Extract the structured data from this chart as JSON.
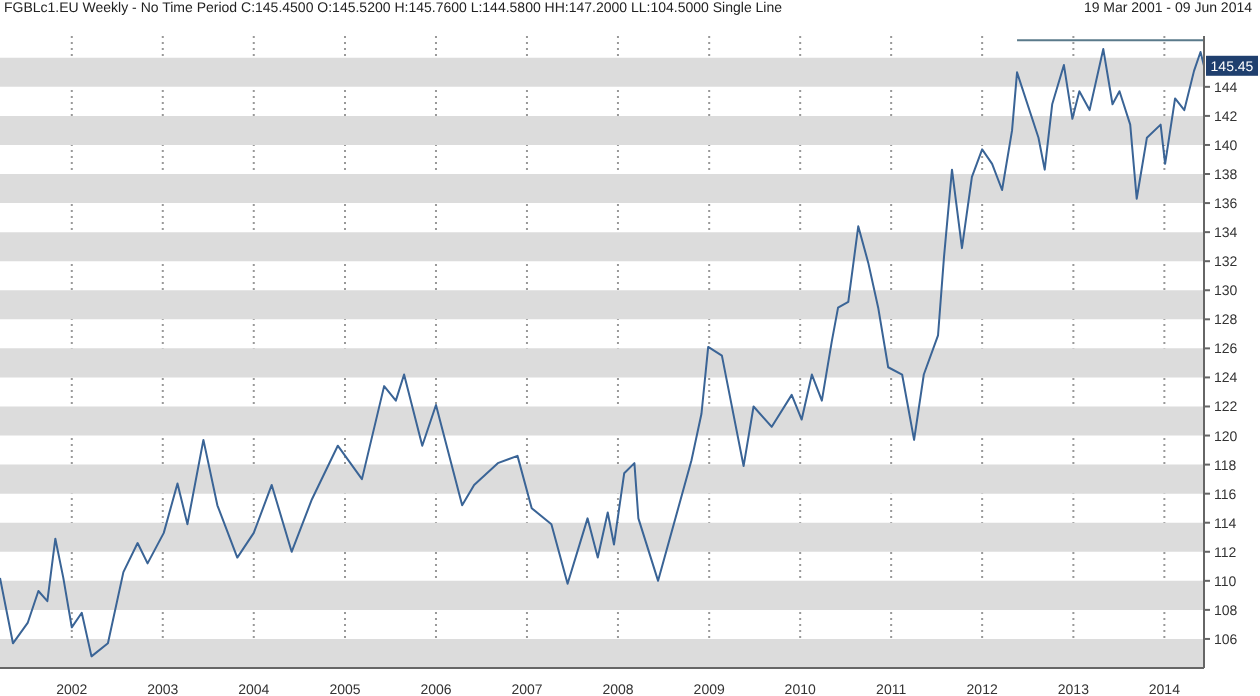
{
  "chart_data": {
    "type": "line",
    "title": "FGBLc1.EU Weekly - No Time Period C:145.4500 O:145.5200 H:145.7600 L:144.5800 HH:147.2000 LL:104.5000 Single Line",
    "subtitle": "19 Mar 2001 - 09 Jun 2014",
    "x": [
      "2001-03-19",
      "2001-05-10",
      "2001-07-08",
      "2001-08-20",
      "2001-09-25",
      "2001-10-27",
      "2001-11-28",
      "2002-01-01",
      "2002-02-10",
      "2002-03-21",
      "2002-05-26",
      "2002-07-27",
      "2002-09-22",
      "2002-11-01",
      "2003-01-05",
      "2003-03-01",
      "2003-04-10",
      "2003-06-13",
      "2003-08-08",
      "2003-10-27",
      "2004-01-01",
      "2004-03-13",
      "2004-06-01",
      "2004-08-21",
      "2004-12-03",
      "2005-03-10",
      "2005-06-07",
      "2005-07-24",
      "2005-08-26",
      "2005-11-07",
      "2006-01-01",
      "2006-04-16",
      "2006-06-03",
      "2006-09-06",
      "2006-11-24",
      "2007-01-20",
      "2007-04-09",
      "2007-06-13",
      "2007-09-01",
      "2007-10-12",
      "2007-11-21",
      "2007-12-16",
      "2008-01-26",
      "2008-03-07",
      "2008-03-23",
      "2008-06-10",
      "2008-10-22",
      "2008-12-01",
      "2008-12-28",
      "2009-02-21",
      "2009-05-19",
      "2009-06-28",
      "2009-09-09",
      "2009-11-28",
      "2010-01-07",
      "2010-02-17",
      "2010-03-29",
      "2010-05-08",
      "2010-06-02",
      "2010-07-13",
      "2010-08-22",
      "2010-10-01",
      "2010-11-10",
      "2010-12-20",
      "2011-02-14",
      "2011-04-03",
      "2011-05-12",
      "2011-07-08",
      "2011-08-01",
      "2011-09-02",
      "2011-10-12",
      "2011-11-21",
      "2012-01-01",
      "2012-02-10",
      "2012-03-21",
      "2012-04-30",
      "2012-05-20",
      "2012-08-14",
      "2012-09-08",
      "2012-10-08",
      "2012-11-24",
      "2012-12-28",
      "2013-01-25",
      "2013-03-07",
      "2013-05-01",
      "2013-06-07",
      "2013-07-05",
      "2013-08-17",
      "2013-09-12",
      "2013-10-23",
      "2013-12-17",
      "2014-01-04",
      "2014-02-13",
      "2014-03-22",
      "2014-04-30",
      "2014-05-26",
      "2014-06-09"
    ],
    "series": [
      {
        "color": "#3a6496",
        "values": [
          110.2,
          105.7,
          107.1,
          109.3,
          108.6,
          112.9,
          110.2,
          106.8,
          107.8,
          104.8,
          105.7,
          110.6,
          112.6,
          111.2,
          113.3,
          116.7,
          113.9,
          119.7,
          115.2,
          111.6,
          113.3,
          116.6,
          112.0,
          115.6,
          119.3,
          117.0,
          123.4,
          122.4,
          124.2,
          119.3,
          122.1,
          115.2,
          116.6,
          118.1,
          118.6,
          115.0,
          113.9,
          109.8,
          114.3,
          111.6,
          114.7,
          112.5,
          117.4,
          118.1,
          114.3,
          110.0,
          118.3,
          121.5,
          126.1,
          125.5,
          117.9,
          122.0,
          120.6,
          122.8,
          121.1,
          124.2,
          122.4,
          126.5,
          128.8,
          129.2,
          134.4,
          131.9,
          128.8,
          124.7,
          124.2,
          119.7,
          124.2,
          126.9,
          132.3,
          138.3,
          132.9,
          137.8,
          139.7,
          138.7,
          136.9,
          141.0,
          145.0,
          140.5,
          138.3,
          142.8,
          145.5,
          141.8,
          143.7,
          142.4,
          146.6,
          142.8,
          143.7,
          141.4,
          136.3,
          140.5,
          141.4,
          138.7,
          143.2,
          142.4,
          145.1,
          146.4,
          145.45
        ]
      },
      {
        "type": "line",
        "color": "#5a7a8a",
        "x": [
          "2012-05-20",
          "2014-06-09"
        ],
        "values": [
          147.2,
          147.2
        ]
      }
    ],
    "xlim": [
      "2001-03-19",
      "2014-06-09"
    ],
    "xticks": [
      {
        "value": "2002",
        "label": "2002"
      },
      {
        "value": "2003",
        "label": "2003"
      },
      {
        "value": "2004",
        "label": "2004"
      },
      {
        "value": "2005",
        "label": "2005"
      },
      {
        "value": "2006",
        "label": "2006"
      },
      {
        "value": "2007",
        "label": "2007"
      },
      {
        "value": "2008",
        "label": "2008"
      },
      {
        "value": "2009",
        "label": "2009"
      },
      {
        "value": "2010",
        "label": "2010"
      },
      {
        "value": "2011",
        "label": "2011"
      },
      {
        "value": "2012",
        "label": "2012"
      },
      {
        "value": "2013",
        "label": "2013"
      },
      {
        "value": "2014",
        "label": "2014"
      }
    ],
    "ylim": [
      104,
      147.5
    ],
    "yticks": [
      106,
      108,
      110,
      112,
      114,
      116,
      118,
      120,
      122,
      124,
      126,
      128,
      130,
      132,
      134,
      136,
      138,
      140,
      142,
      144
    ],
    "grid": "x",
    "legend": false,
    "marker": "none",
    "line_style": "solid",
    "bands": [
      {
        "axis": "y",
        "from": 104,
        "to": 106,
        "color": "#dcdcdc"
      },
      {
        "axis": "y",
        "from": 108,
        "to": 110,
        "color": "#dcdcdc"
      },
      {
        "axis": "y",
        "from": 112,
        "to": 114,
        "color": "#dcdcdc"
      },
      {
        "axis": "y",
        "from": 116,
        "to": 118,
        "color": "#dcdcdc"
      },
      {
        "axis": "y",
        "from": 120,
        "to": 122,
        "color": "#dcdcdc"
      },
      {
        "axis": "y",
        "from": 124,
        "to": 126,
        "color": "#dcdcdc"
      },
      {
        "axis": "y",
        "from": 128,
        "to": 130,
        "color": "#dcdcdc"
      },
      {
        "axis": "y",
        "from": 132,
        "to": 134,
        "color": "#dcdcdc"
      },
      {
        "axis": "y",
        "from": 136,
        "to": 138,
        "color": "#dcdcdc"
      },
      {
        "axis": "y",
        "from": 140,
        "to": 142,
        "color": "#dcdcdc"
      },
      {
        "axis": "y",
        "from": 144,
        "to": 146,
        "color": "#dcdcdc"
      }
    ],
    "annotations": [
      {
        "text": "145.45",
        "x": "2014-06-09",
        "y": 145.45
      }
    ]
  }
}
